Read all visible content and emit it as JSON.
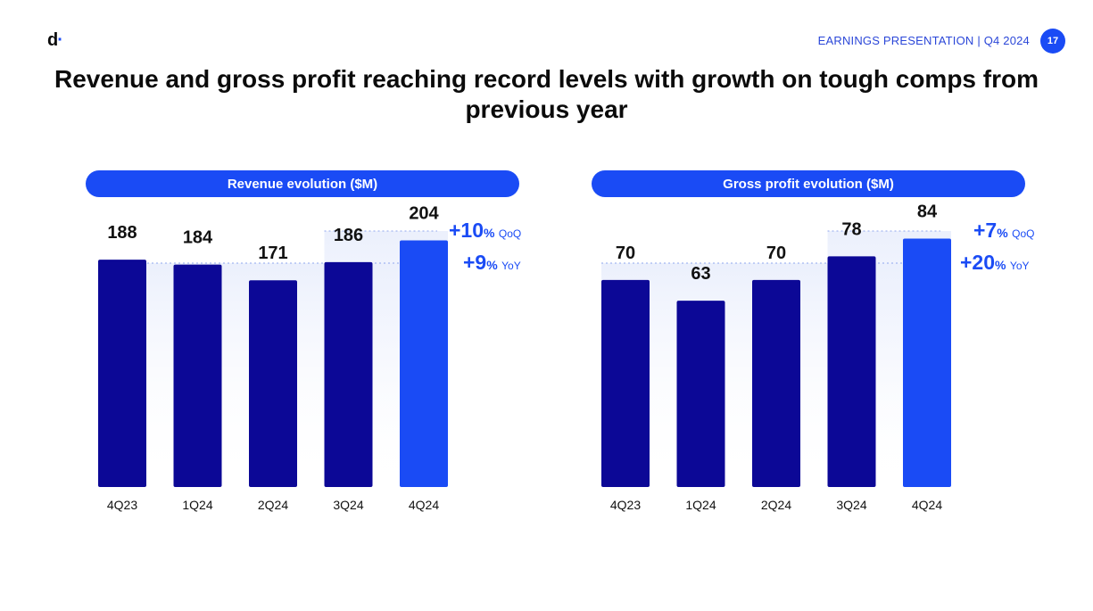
{
  "header": {
    "logo_text": "d",
    "logo_dot": "·",
    "presentation_label": "EARNINGS PRESENTATION | Q4 2024",
    "page_number": "17"
  },
  "title": "Revenue and gross profit reaching record levels with growth on tough comps from previous year",
  "colors": {
    "accent": "#1a4bf5",
    "bar_dark": "#0c0896",
    "bar_highlight": "#1a4bf5"
  },
  "chart_data": [
    {
      "type": "bar",
      "title": "Revenue evolution ($M)",
      "categories": [
        "4Q23",
        "1Q24",
        "2Q24",
        "3Q24",
        "4Q24"
      ],
      "values": [
        188,
        184,
        171,
        186,
        204
      ],
      "data_labels": [
        "188",
        "184",
        "171",
        "186",
        "204"
      ],
      "highlight_index": 4,
      "ylim": [
        0,
        225
      ],
      "xlabel": "",
      "ylabel": "",
      "annotations": [
        {
          "number": "+10",
          "pct": "%",
          "label": "QoQ"
        },
        {
          "number": "+9",
          "pct": "%",
          "label": "YoY"
        }
      ]
    },
    {
      "type": "bar",
      "title": "Gross profit evolution ($M)",
      "categories": [
        "4Q23",
        "1Q24",
        "2Q24",
        "3Q24",
        "4Q24"
      ],
      "values": [
        70,
        63,
        70,
        78,
        84
      ],
      "data_labels": [
        "70",
        "63",
        "70",
        "78",
        "84"
      ],
      "highlight_index": 4,
      "ylim": [
        0,
        92
      ],
      "xlabel": "",
      "ylabel": "",
      "annotations": [
        {
          "number": "+7",
          "pct": "%",
          "label": "QoQ"
        },
        {
          "number": "+20",
          "pct": "%",
          "label": "YoY"
        }
      ]
    }
  ]
}
